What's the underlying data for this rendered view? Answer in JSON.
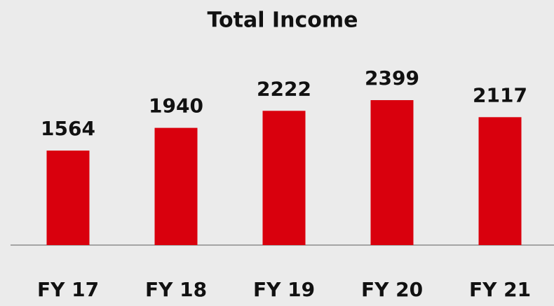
{
  "chart_data": {
    "type": "bar",
    "title": "Total Income",
    "categories": [
      "FY 17",
      "FY 18",
      "FY 19",
      "FY 20",
      "FY 21"
    ],
    "values": [
      1564,
      1940,
      2222,
      2399,
      2117
    ],
    "color": "#d9000d"
  }
}
